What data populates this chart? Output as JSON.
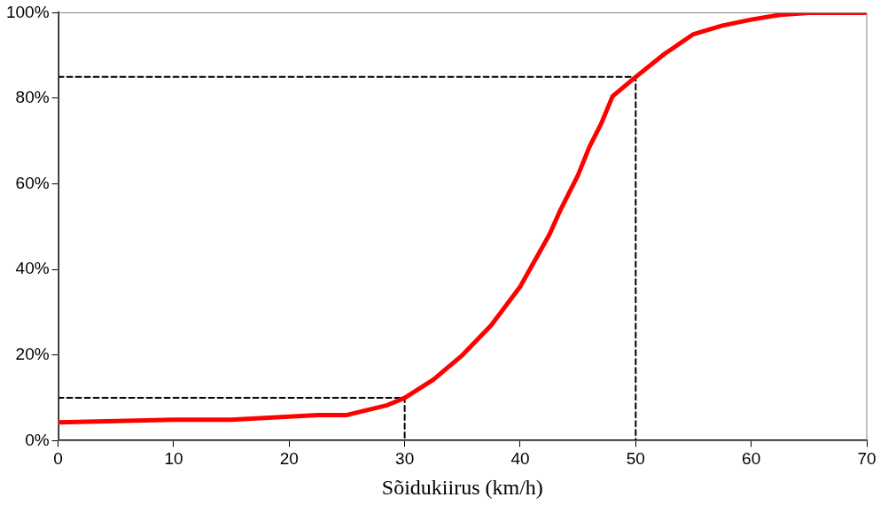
{
  "chart_data": {
    "type": "line",
    "xlabel": "Sõidukiirus (km/h)",
    "xlim": [
      0,
      70
    ],
    "xticks": [
      0,
      10,
      20,
      30,
      40,
      50,
      60,
      70
    ],
    "ylim": [
      0,
      100
    ],
    "yticks": [
      {
        "value": 0,
        "label": "0%"
      },
      {
        "value": 20,
        "label": "20%"
      },
      {
        "value": 40,
        "label": "40%"
      },
      {
        "value": 60,
        "label": "60%"
      },
      {
        "value": 80,
        "label": "80%"
      },
      {
        "value": 100,
        "label": "100%"
      }
    ],
    "grid": false,
    "legend": false,
    "marker": "none",
    "series": [
      {
        "color": "#ff0000",
        "line_style": "solid",
        "x": [
          0,
          5,
          10,
          15,
          20,
          22.5,
          25,
          26.5,
          28.5,
          30,
          32.5,
          35,
          37.5,
          40,
          42.5,
          43.5,
          45,
          46,
          47,
          48,
          50,
          52.5,
          55,
          57.5,
          60,
          62.5,
          65,
          70
        ],
        "values": [
          4.3,
          4.6,
          4.9,
          4.9,
          5.6,
          6,
          6,
          7,
          8.3,
          10,
          14.3,
          20,
          27,
          36,
          48,
          54,
          62,
          68.7,
          74,
          80.5,
          85,
          90.4,
          95,
          97,
          98.4,
          99.5,
          100,
          100
        ]
      },
      {
        "color": "#000000",
        "line_style": "dashed",
        "x": [
          0,
          30,
          30
        ],
        "values": [
          10,
          10,
          0
        ]
      },
      {
        "color": "#000000",
        "line_style": "dashed",
        "x": [
          0,
          50,
          50
        ],
        "values": [
          85,
          85,
          0
        ]
      }
    ]
  }
}
